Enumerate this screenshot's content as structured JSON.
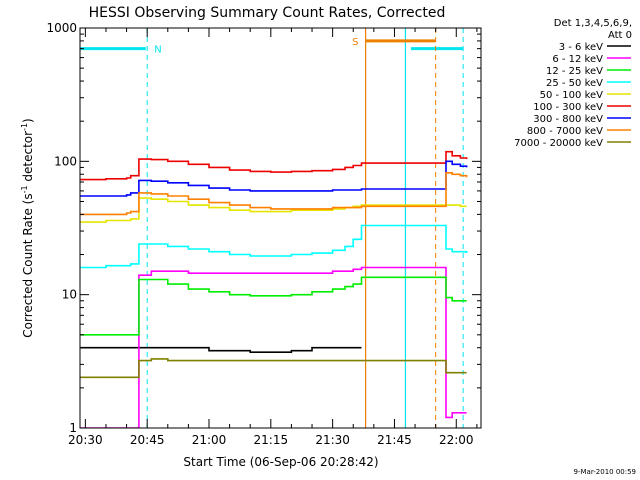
{
  "chart_data": {
    "type": "line",
    "title": "HESSI Observing Summary Count Rates, Corrected",
    "xlabel": "Start Time (06-Sep-06 20:28:42)",
    "ylabel": "Corrected Count Rate (s⁻¹ detector⁻¹)",
    "ylabel_main": "Corrected Count Rate (s",
    "ylabel_sup1": "-1",
    "ylabel_mid": " detector",
    "ylabel_sup2": "-1",
    "ylabel_end": ")",
    "y_scale": "log",
    "ylim": [
      1,
      1000
    ],
    "xlim": [
      "20:28:42",
      "22:06:00"
    ],
    "x_tick_labels": [
      "20:30",
      "20:45",
      "21:00",
      "21:15",
      "21:30",
      "21:45",
      "22:00"
    ],
    "y_tick_labels": [
      "1",
      "10",
      "100",
      "1000"
    ],
    "legend_header": [
      "Det 1,3,4,5,6,9,",
      "Att 0"
    ],
    "legend_placement": "right",
    "timestamp": "9-Mar-2010 00:59",
    "flags": [
      {
        "label": "N",
        "color": "#00e5ee",
        "level": 700,
        "segments": [
          [
            "20:28:42",
            "20:44:40"
          ],
          [
            "21:49:00",
            "22:01:40"
          ]
        ],
        "dashed_lines": [
          "20:45:00",
          "22:01:40"
        ],
        "solid_lines": [
          "21:47:40"
        ],
        "label_at": "20:46:00"
      },
      {
        "label": "S",
        "color": "#ee8000",
        "level": 800,
        "segments": [
          [
            "21:38:00",
            "21:55:00"
          ]
        ],
        "dashed_lines": [
          "21:55:00"
        ],
        "solid_lines": [
          "21:38:00"
        ],
        "label_at": "21:34:00"
      }
    ],
    "data_gaps": [
      [
        "21:37:40",
        "21:57:10"
      ]
    ],
    "x_times": [
      "20:28:42",
      "20:35:00",
      "20:40:00",
      "20:41:00",
      "20:43:00",
      "20:46:00",
      "20:50:00",
      "20:55:00",
      "21:00:00",
      "21:05:00",
      "21:10:00",
      "21:15:00",
      "21:20:00",
      "21:25:00",
      "21:30:00",
      "21:33:00",
      "21:35:00",
      "21:37:00",
      "21:57:30",
      "21:59:00",
      "22:01:00",
      "22:02:30"
    ],
    "series": [
      {
        "name": "3 - 6 keV",
        "color": "#000000",
        "values": [
          4,
          4,
          4,
          4,
          4,
          4,
          4,
          4,
          3.8,
          3.8,
          3.7,
          3.7,
          3.8,
          4,
          4,
          4,
          4,
          4,
          null,
          null,
          null,
          null
        ]
      },
      {
        "name": "6 - 12 keV",
        "color": "#ff00ff",
        "values": [
          1,
          1,
          1,
          1,
          14,
          15,
          15,
          14.5,
          14.5,
          14.5,
          14.5,
          14.5,
          14.5,
          14.5,
          15,
          15,
          15.5,
          16,
          1.2,
          1.3,
          1.3,
          1.3
        ]
      },
      {
        "name": "12 - 25 keV",
        "color": "#00ee00",
        "values": [
          5,
          5,
          5,
          5,
          13,
          13,
          12,
          11,
          10.5,
          10,
          9.8,
          9.8,
          10,
          10.5,
          11,
          11.5,
          12,
          13.5,
          9.5,
          9,
          9,
          9
        ]
      },
      {
        "name": "25 - 50 keV",
        "color": "#00ffff",
        "values": [
          16,
          16.5,
          16.5,
          17,
          24,
          24,
          23,
          22,
          21,
          20,
          19.5,
          19.5,
          20,
          20.5,
          21.5,
          23,
          26,
          33,
          22,
          21,
          21,
          20.5
        ]
      },
      {
        "name": "50 - 100 keV",
        "color": "#e5e500",
        "values": [
          35,
          36,
          36,
          37,
          53,
          52,
          50,
          47,
          45,
          43,
          42,
          42,
          43,
          43,
          44,
          45,
          46,
          47,
          47,
          47,
          46,
          46
        ]
      },
      {
        "name": "100 - 300 keV",
        "color": "#ee0000",
        "values": [
          73,
          74,
          75,
          78,
          104,
          103,
          100,
          95,
          90,
          86,
          84,
          83,
          84,
          85,
          87,
          90,
          93,
          97,
          118,
          110,
          106,
          104
        ]
      },
      {
        "name": "300 - 800 keV",
        "color": "#0000ff",
        "values": [
          55,
          55,
          56,
          58,
          72,
          71,
          69,
          66,
          63,
          61,
          60,
          60,
          60,
          60,
          61,
          61,
          61,
          62,
          100,
          95,
          92,
          90
        ]
      },
      {
        "name": "800 - 7000 keV",
        "color": "#ff8000",
        "values": [
          40,
          40,
          41,
          42,
          58,
          57,
          55,
          52,
          49,
          47,
          45,
          44,
          44,
          44,
          45,
          45,
          45,
          46,
          82,
          80,
          78,
          76
        ]
      },
      {
        "name": "7000 - 20000 keV",
        "color": "#808000",
        "values": [
          2.4,
          2.4,
          2.4,
          2.4,
          3.2,
          3.3,
          3.2,
          3.2,
          3.2,
          3.2,
          3.2,
          3.2,
          3.2,
          3.2,
          3.2,
          3.2,
          3.2,
          3.2,
          2.6,
          2.6,
          2.6,
          2.6
        ]
      }
    ]
  }
}
